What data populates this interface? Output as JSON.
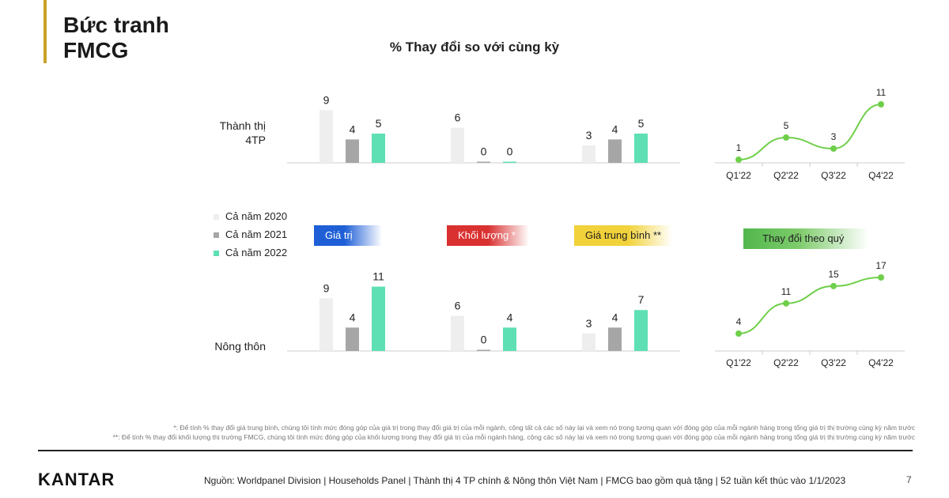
{
  "header": {
    "title_line1": "Bức tranh",
    "title_line2": "FMCG",
    "subtitle": "% Thay đổi so với cùng kỳ"
  },
  "rows": {
    "urban_line1": "Thành thị",
    "urban_line2": "4TP",
    "rural": "Nông thôn"
  },
  "legend": [
    {
      "label": "Cả năm 2020",
      "color": "#eeeeee"
    },
    {
      "label": "Cả năm 2021",
      "color": "#a6a6a6"
    },
    {
      "label": "Cả năm 2022",
      "color": "#5ee0b4"
    }
  ],
  "metrics": [
    {
      "label": "Giá trị",
      "color": "#1f5fd6",
      "text_color": "#ffffff"
    },
    {
      "label": "Khối lượng *",
      "color": "#d93030",
      "text_color": "#ffffff"
    },
    {
      "label": "Giá trung bình **",
      "color": "#f2d23a",
      "text_color": "#222222"
    },
    {
      "label": "Thay đổi theo quý",
      "color": "#52b74c",
      "text_color": "#222222"
    }
  ],
  "chart_data": [
    {
      "type": "bar",
      "row": "Thành thị 4TP",
      "groups": [
        "Giá trị",
        "Khối lượng *",
        "Giá trung bình **"
      ],
      "series": [
        {
          "name": "Cả năm 2020",
          "values": [
            9,
            6,
            3
          ]
        },
        {
          "name": "Cả năm 2021",
          "values": [
            4,
            0,
            4
          ]
        },
        {
          "name": "Cả năm 2022",
          "values": [
            5,
            0,
            5
          ]
        }
      ]
    },
    {
      "type": "bar",
      "row": "Nông thôn",
      "groups": [
        "Giá trị",
        "Khối lượng *",
        "Giá trung bình **"
      ],
      "series": [
        {
          "name": "Cả năm 2020",
          "values": [
            9,
            6,
            3
          ]
        },
        {
          "name": "Cả năm 2021",
          "values": [
            4,
            0,
            4
          ]
        },
        {
          "name": "Cả năm 2022",
          "values": [
            11,
            4,
            7
          ]
        }
      ]
    },
    {
      "type": "line",
      "row": "Thành thị 4TP",
      "x": [
        "Q1'22",
        "Q2'22",
        "Q3'22",
        "Q4'22"
      ],
      "values": [
        1,
        5,
        3,
        11
      ]
    },
    {
      "type": "line",
      "row": "Nông thôn",
      "x": [
        "Q1'22",
        "Q2'22",
        "Q3'22",
        "Q4'22"
      ],
      "values": [
        4,
        11,
        15,
        17
      ]
    }
  ],
  "footnotes": {
    "note1": "*: Để tính % thay đổi giá trung bình, chúng tôi tính mức đóng góp của giá trị trong thay đổi giá trị của mỗi ngành, cộng tất cả các số này lại và xem nó trong tương quan với đóng góp của mỗi ngành hàng trong tổng giá trị thị trường cùng kỳ năm trước",
    "note2": "**: Để tính % thay đổi khối lượng thị trường FMCG, chúng tôi tính mức đóng góp của khối lượng trong thay đổi giá trị của mỗi ngành hàng, cộng các số này lại và xem nó trong tương quan với đóng góp của mỗi ngành hàng trong tổng giá trị thị trường cùng kỳ năm trước"
  },
  "footer": {
    "brand": "KANTAR",
    "source": "Nguồn: Worldpanel Division | Households Panel | Thành thị 4 TP chính & Nông thôn Việt Nam | FMCG bao gồm quà tặng | 52 tuần kết thúc vào 1/1/2023",
    "page": "7"
  },
  "colors": {
    "line": "#6fcf4a",
    "axis": "#cccccc"
  }
}
